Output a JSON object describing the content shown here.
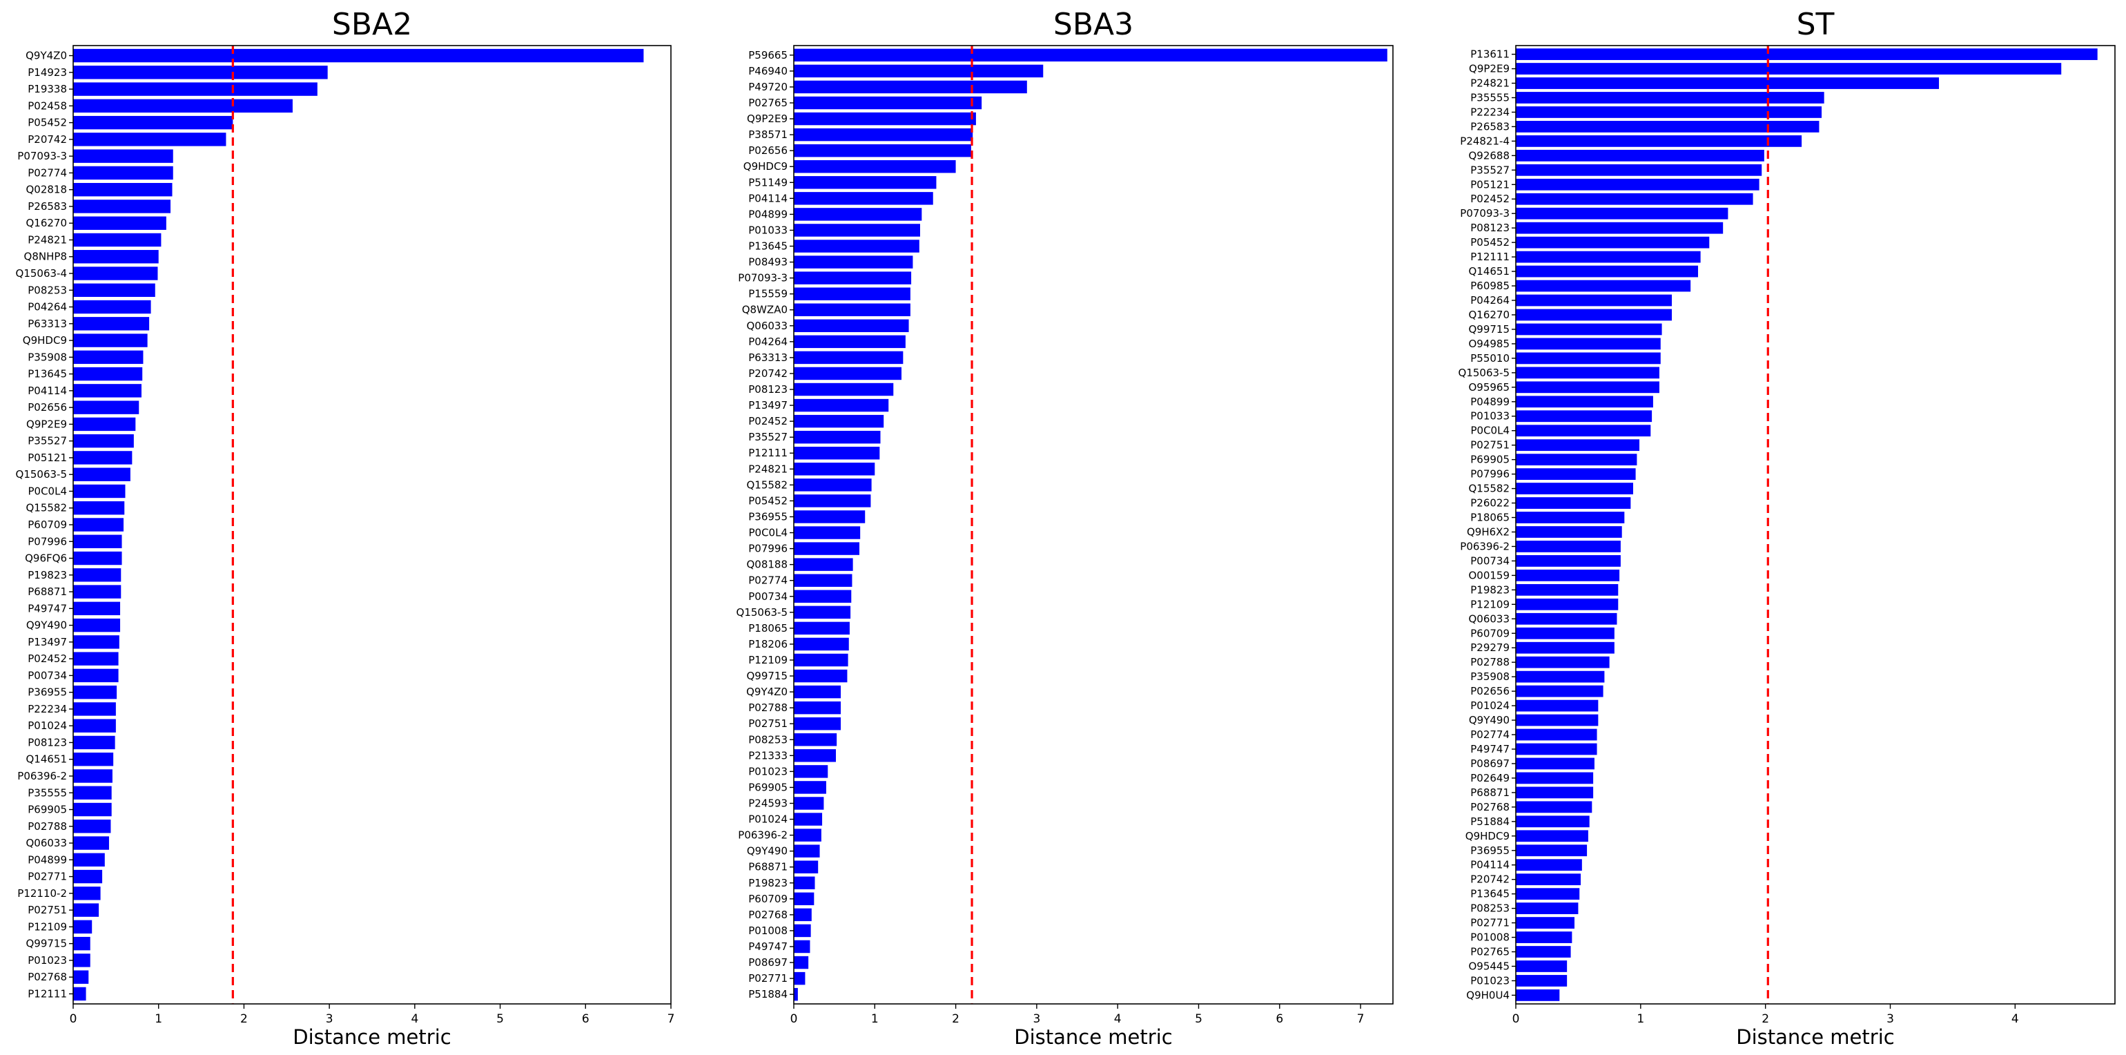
{
  "chart_data": [
    {
      "type": "bar",
      "orientation": "horizontal",
      "title": "SBA2",
      "xlabel": "Distance metric",
      "xlim": [
        0,
        7
      ],
      "xticks": [
        0,
        1,
        2,
        3,
        4,
        5,
        6,
        7
      ],
      "threshold": 1.87,
      "threshold_color": "#ff0000",
      "bar_color": "#0000ff",
      "categories": [
        "Q9Y4Z0",
        "P14923",
        "P19338",
        "P02458",
        "P05452",
        "P20742",
        "P07093-3",
        "P02774",
        "Q02818",
        "P26583",
        "Q16270",
        "P24821",
        "Q8NHP8",
        "Q15063-4",
        "P08253",
        "P04264",
        "P63313",
        "Q9HDC9",
        "P35908",
        "P13645",
        "P04114",
        "P02656",
        "Q9P2E9",
        "P35527",
        "P05121",
        "Q15063-5",
        "P0C0L4",
        "Q15582",
        "P60709",
        "P07996",
        "Q96FQ6",
        "P19823",
        "P68871",
        "P49747",
        "Q9Y490",
        "P13497",
        "P02452",
        "P00734",
        "P36955",
        "P22234",
        "P01024",
        "P08123",
        "Q14651",
        "P06396-2",
        "P35555",
        "P69905",
        "P02788",
        "Q06033",
        "P04899",
        "P02771",
        "P12110-2",
        "P02751",
        "P12109",
        "Q99715",
        "P01023",
        "P02768",
        "P12111"
      ],
      "values": [
        6.68,
        2.98,
        2.86,
        2.57,
        1.87,
        1.79,
        1.17,
        1.17,
        1.16,
        1.14,
        1.09,
        1.03,
        1.0,
        0.99,
        0.96,
        0.91,
        0.89,
        0.87,
        0.82,
        0.81,
        0.8,
        0.77,
        0.73,
        0.71,
        0.69,
        0.67,
        0.61,
        0.6,
        0.59,
        0.57,
        0.57,
        0.56,
        0.56,
        0.55,
        0.55,
        0.54,
        0.53,
        0.53,
        0.51,
        0.5,
        0.5,
        0.49,
        0.47,
        0.46,
        0.45,
        0.45,
        0.44,
        0.42,
        0.37,
        0.34,
        0.32,
        0.3,
        0.22,
        0.2,
        0.2,
        0.18,
        0.15
      ]
    },
    {
      "type": "bar",
      "orientation": "horizontal",
      "title": "SBA3",
      "xlabel": "Distance metric",
      "xlim": [
        0,
        7.4
      ],
      "xticks": [
        0,
        1,
        2,
        3,
        4,
        5,
        6,
        7
      ],
      "threshold": 2.2,
      "threshold_color": "#ff0000",
      "bar_color": "#0000ff",
      "categories": [
        "P59665",
        "P46940",
        "P49720",
        "P02765",
        "Q9P2E9",
        "P38571",
        "P02656",
        "Q9HDC9",
        "P51149",
        "P04114",
        "P04899",
        "P01033",
        "P13645",
        "P08493",
        "P07093-3",
        "P15559",
        "Q8WZA0",
        "Q06033",
        "P04264",
        "P63313",
        "P20742",
        "P08123",
        "P13497",
        "P02452",
        "P35527",
        "P12111",
        "P24821",
        "Q15582",
        "P05452",
        "P36955",
        "P0C0L4",
        "P07996",
        "Q08188",
        "P02774",
        "P00734",
        "Q15063-5",
        "P18065",
        "P18206",
        "P12109",
        "Q99715",
        "Q9Y4Z0",
        "P02788",
        "P02751",
        "P08253",
        "P21333",
        "P01023",
        "P69905",
        "P24593",
        "P01024",
        "P06396-2",
        "Q9Y490",
        "P68871",
        "P19823",
        "P60709",
        "P02768",
        "P01008",
        "P49747",
        "P08697",
        "P02771",
        "P51884"
      ],
      "values": [
        7.33,
        3.08,
        2.88,
        2.32,
        2.25,
        2.21,
        2.19,
        2.0,
        1.76,
        1.72,
        1.58,
        1.56,
        1.55,
        1.47,
        1.45,
        1.44,
        1.44,
        1.42,
        1.38,
        1.35,
        1.33,
        1.23,
        1.17,
        1.11,
        1.07,
        1.06,
        1.0,
        0.96,
        0.95,
        0.88,
        0.82,
        0.81,
        0.73,
        0.72,
        0.71,
        0.7,
        0.69,
        0.68,
        0.67,
        0.66,
        0.58,
        0.58,
        0.58,
        0.53,
        0.52,
        0.42,
        0.4,
        0.37,
        0.35,
        0.34,
        0.32,
        0.3,
        0.26,
        0.25,
        0.22,
        0.21,
        0.2,
        0.18,
        0.14,
        0.05
      ]
    },
    {
      "type": "bar",
      "orientation": "horizontal",
      "title": "ST",
      "xlabel": "Distance metric",
      "xlim": [
        0,
        4.8
      ],
      "xticks": [
        0,
        1,
        2,
        3,
        4
      ],
      "threshold": 2.02,
      "threshold_color": "#ff0000",
      "bar_color": "#0000ff",
      "categories": [
        "P13611",
        "Q9P2E9",
        "P24821",
        "P35555",
        "P22234",
        "P26583",
        "P24821-4",
        "Q92688",
        "P35527",
        "P05121",
        "P02452",
        "P07093-3",
        "P08123",
        "P05452",
        "P12111",
        "Q14651",
        "P60985",
        "P04264",
        "Q16270",
        "Q99715",
        "O94985",
        "P55010",
        "Q15063-5",
        "O95965",
        "P04899",
        "P01033",
        "P0C0L4",
        "P02751",
        "P69905",
        "P07996",
        "Q15582",
        "P26022",
        "P18065",
        "Q9H6X2",
        "P06396-2",
        "P00734",
        "O00159",
        "P19823",
        "P12109",
        "Q06033",
        "P60709",
        "P29279",
        "P02788",
        "P35908",
        "P02656",
        "P01024",
        "Q9Y490",
        "P02774",
        "P49747",
        "P08697",
        "P02649",
        "P68871",
        "P02768",
        "P51884",
        "Q9HDC9",
        "P36955",
        "P04114",
        "P20742",
        "P13645",
        "P08253",
        "P02771",
        "P01008",
        "P02765",
        "O95445",
        "P01023",
        "Q9H0U4"
      ],
      "values": [
        4.66,
        4.37,
        3.39,
        2.47,
        2.45,
        2.43,
        2.29,
        1.99,
        1.97,
        1.95,
        1.9,
        1.7,
        1.66,
        1.55,
        1.48,
        1.46,
        1.4,
        1.25,
        1.25,
        1.17,
        1.16,
        1.16,
        1.15,
        1.15,
        1.1,
        1.09,
        1.08,
        0.99,
        0.97,
        0.96,
        0.94,
        0.92,
        0.87,
        0.85,
        0.84,
        0.84,
        0.83,
        0.82,
        0.82,
        0.81,
        0.79,
        0.79,
        0.75,
        0.71,
        0.7,
        0.66,
        0.66,
        0.65,
        0.65,
        0.63,
        0.62,
        0.62,
        0.61,
        0.59,
        0.58,
        0.57,
        0.53,
        0.52,
        0.51,
        0.5,
        0.47,
        0.45,
        0.44,
        0.41,
        0.41,
        0.35
      ]
    }
  ]
}
